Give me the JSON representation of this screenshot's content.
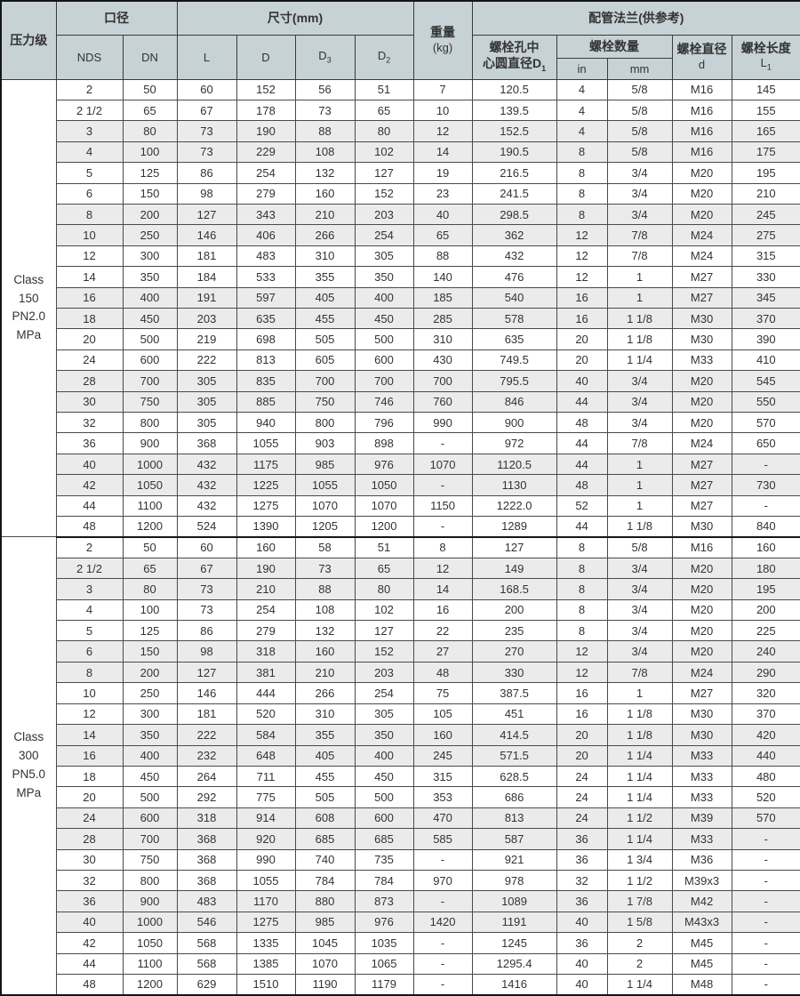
{
  "colors": {
    "header_bg": "#c7d2d6",
    "stripe_bg": "#ebebeb",
    "border_dark": "#151515",
    "border_mid": "#4a4a4a",
    "text": "#333333"
  },
  "header": {
    "pressure_class": "压力级",
    "bore": "口径",
    "nds": "NDS",
    "dn": "DN",
    "dimensions": "尺寸(mm)",
    "col_l": "L",
    "col_d": "D",
    "col_d3": {
      "main": "D",
      "sub": "3"
    },
    "col_d2": {
      "main": "D",
      "sub": "2"
    },
    "weight_line1": "重量",
    "weight_line2": "(kg)",
    "flange": "配管法兰(供参考)",
    "bolt_circle_line1": "螺栓孔中",
    "bolt_circle_line2": "心圆直径D",
    "bolt_circle_sub": "1",
    "bolt_qty": "螺栓数量",
    "bolt_qty_in": "in",
    "bolt_qty_mm": "mm",
    "bolt_dia_line1": "螺栓直径",
    "bolt_dia_line2": "d",
    "bolt_len_line1": "螺栓长度",
    "bolt_len_line2": "L",
    "bolt_len_sub": "1"
  },
  "sections": [
    {
      "label_lines": [
        "Class",
        "150",
        "PN2.0",
        "MPa"
      ],
      "rows": [
        {
          "shaded": false,
          "cells": [
            "2",
            "50",
            "60",
            "152",
            "56",
            "51",
            "7",
            "120.5",
            "4",
            "5/8",
            "M16",
            "145"
          ]
        },
        {
          "shaded": false,
          "cells": [
            "2 1/2",
            "65",
            "67",
            "178",
            "73",
            "65",
            "10",
            "139.5",
            "4",
            "5/8",
            "M16",
            "155"
          ]
        },
        {
          "shaded": true,
          "cells": [
            "3",
            "80",
            "73",
            "190",
            "88",
            "80",
            "12",
            "152.5",
            "4",
            "5/8",
            "M16",
            "165"
          ]
        },
        {
          "shaded": true,
          "cells": [
            "4",
            "100",
            "73",
            "229",
            "108",
            "102",
            "14",
            "190.5",
            "8",
            "5/8",
            "M16",
            "175"
          ]
        },
        {
          "shaded": false,
          "cells": [
            "5",
            "125",
            "86",
            "254",
            "132",
            "127",
            "19",
            "216.5",
            "8",
            "3/4",
            "M20",
            "195"
          ]
        },
        {
          "shaded": false,
          "cells": [
            "6",
            "150",
            "98",
            "279",
            "160",
            "152",
            "23",
            "241.5",
            "8",
            "3/4",
            "M20",
            "210"
          ]
        },
        {
          "shaded": true,
          "cells": [
            "8",
            "200",
            "127",
            "343",
            "210",
            "203",
            "40",
            "298.5",
            "8",
            "3/4",
            "M20",
            "245"
          ]
        },
        {
          "shaded": true,
          "cells": [
            "10",
            "250",
            "146",
            "406",
            "266",
            "254",
            "65",
            "362",
            "12",
            "7/8",
            "M24",
            "275"
          ]
        },
        {
          "shaded": false,
          "cells": [
            "12",
            "300",
            "181",
            "483",
            "310",
            "305",
            "88",
            "432",
            "12",
            "7/8",
            "M24",
            "315"
          ]
        },
        {
          "shaded": false,
          "cells": [
            "14",
            "350",
            "184",
            "533",
            "355",
            "350",
            "140",
            "476",
            "12",
            "1",
            "M27",
            "330"
          ]
        },
        {
          "shaded": true,
          "cells": [
            "16",
            "400",
            "191",
            "597",
            "405",
            "400",
            "185",
            "540",
            "16",
            "1",
            "M27",
            "345"
          ]
        },
        {
          "shaded": true,
          "cells": [
            "18",
            "450",
            "203",
            "635",
            "455",
            "450",
            "285",
            "578",
            "16",
            "1 1/8",
            "M30",
            "370"
          ]
        },
        {
          "shaded": false,
          "cells": [
            "20",
            "500",
            "219",
            "698",
            "505",
            "500",
            "310",
            "635",
            "20",
            "1 1/8",
            "M30",
            "390"
          ]
        },
        {
          "shaded": false,
          "cells": [
            "24",
            "600",
            "222",
            "813",
            "605",
            "600",
            "430",
            "749.5",
            "20",
            "1 1/4",
            "M33",
            "410"
          ]
        },
        {
          "shaded": true,
          "cells": [
            "28",
            "700",
            "305",
            "835",
            "700",
            "700",
            "700",
            "795.5",
            "40",
            "3/4",
            "M20",
            "545"
          ]
        },
        {
          "shaded": true,
          "cells": [
            "30",
            "750",
            "305",
            "885",
            "750",
            "746",
            "760",
            "846",
            "44",
            "3/4",
            "M20",
            "550"
          ]
        },
        {
          "shaded": false,
          "cells": [
            "32",
            "800",
            "305",
            "940",
            "800",
            "796",
            "990",
            "900",
            "48",
            "3/4",
            "M20",
            "570"
          ]
        },
        {
          "shaded": false,
          "cells": [
            "36",
            "900",
            "368",
            "1055",
            "903",
            "898",
            "-",
            "972",
            "44",
            "7/8",
            "M24",
            "650"
          ]
        },
        {
          "shaded": true,
          "cells": [
            "40",
            "1000",
            "432",
            "1175",
            "985",
            "976",
            "1070",
            "1120.5",
            "44",
            "1",
            "M27",
            "-"
          ]
        },
        {
          "shaded": true,
          "cells": [
            "42",
            "1050",
            "432",
            "1225",
            "1055",
            "1050",
            "-",
            "1130",
            "48",
            "1",
            "M27",
            "730"
          ]
        },
        {
          "shaded": false,
          "cells": [
            "44",
            "1100",
            "432",
            "1275",
            "1070",
            "1070",
            "1150",
            "1222.0",
            "52",
            "1",
            "M27",
            "-"
          ]
        },
        {
          "shaded": false,
          "cells": [
            "48",
            "1200",
            "524",
            "1390",
            "1205",
            "1200",
            "-",
            "1289",
            "44",
            "1 1/8",
            "M30",
            "840"
          ]
        }
      ]
    },
    {
      "label_lines": [
        "Class",
        "300",
        "PN5.0",
        "MPa"
      ],
      "rows": [
        {
          "shaded": false,
          "cells": [
            "2",
            "50",
            "60",
            "160",
            "58",
            "51",
            "8",
            "127",
            "8",
            "5/8",
            "M16",
            "160"
          ]
        },
        {
          "shaded": true,
          "cells": [
            "2 1/2",
            "65",
            "67",
            "190",
            "73",
            "65",
            "12",
            "149",
            "8",
            "3/4",
            "M20",
            "180"
          ]
        },
        {
          "shaded": true,
          "cells": [
            "3",
            "80",
            "73",
            "210",
            "88",
            "80",
            "14",
            "168.5",
            "8",
            "3/4",
            "M20",
            "195"
          ]
        },
        {
          "shaded": false,
          "cells": [
            "4",
            "100",
            "73",
            "254",
            "108",
            "102",
            "16",
            "200",
            "8",
            "3/4",
            "M20",
            "200"
          ]
        },
        {
          "shaded": false,
          "cells": [
            "5",
            "125",
            "86",
            "279",
            "132",
            "127",
            "22",
            "235",
            "8",
            "3/4",
            "M20",
            "225"
          ]
        },
        {
          "shaded": true,
          "cells": [
            "6",
            "150",
            "98",
            "318",
            "160",
            "152",
            "27",
            "270",
            "12",
            "3/4",
            "M20",
            "240"
          ]
        },
        {
          "shaded": true,
          "cells": [
            "8",
            "200",
            "127",
            "381",
            "210",
            "203",
            "48",
            "330",
            "12",
            "7/8",
            "M24",
            "290"
          ]
        },
        {
          "shaded": false,
          "cells": [
            "10",
            "250",
            "146",
            "444",
            "266",
            "254",
            "75",
            "387.5",
            "16",
            "1",
            "M27",
            "320"
          ]
        },
        {
          "shaded": false,
          "cells": [
            "12",
            "300",
            "181",
            "520",
            "310",
            "305",
            "105",
            "451",
            "16",
            "1 1/8",
            "M30",
            "370"
          ]
        },
        {
          "shaded": true,
          "cells": [
            "14",
            "350",
            "222",
            "584",
            "355",
            "350",
            "160",
            "414.5",
            "20",
            "1 1/8",
            "M30",
            "420"
          ]
        },
        {
          "shaded": true,
          "cells": [
            "16",
            "400",
            "232",
            "648",
            "405",
            "400",
            "245",
            "571.5",
            "20",
            "1 1/4",
            "M33",
            "440"
          ]
        },
        {
          "shaded": false,
          "cells": [
            "18",
            "450",
            "264",
            "711",
            "455",
            "450",
            "315",
            "628.5",
            "24",
            "1 1/4",
            "M33",
            "480"
          ]
        },
        {
          "shaded": false,
          "cells": [
            "20",
            "500",
            "292",
            "775",
            "505",
            "500",
            "353",
            "686",
            "24",
            "1 1/4",
            "M33",
            "520"
          ]
        },
        {
          "shaded": true,
          "cells": [
            "24",
            "600",
            "318",
            "914",
            "608",
            "600",
            "470",
            "813",
            "24",
            "1 1/2",
            "M39",
            "570"
          ]
        },
        {
          "shaded": true,
          "cells": [
            "28",
            "700",
            "368",
            "920",
            "685",
            "685",
            "585",
            "587",
            "36",
            "1 1/4",
            "M33",
            "-"
          ]
        },
        {
          "shaded": false,
          "cells": [
            "30",
            "750",
            "368",
            "990",
            "740",
            "735",
            "-",
            "921",
            "36",
            "1 3/4",
            "M36",
            "-"
          ]
        },
        {
          "shaded": false,
          "cells": [
            "32",
            "800",
            "368",
            "1055",
            "784",
            "784",
            "970",
            "978",
            "32",
            "1 1/2",
            "M39x3",
            "-"
          ]
        },
        {
          "shaded": true,
          "cells": [
            "36",
            "900",
            "483",
            "1170",
            "880",
            "873",
            "-",
            "1089",
            "36",
            "1 7/8",
            "M42",
            "-"
          ]
        },
        {
          "shaded": true,
          "cells": [
            "40",
            "1000",
            "546",
            "1275",
            "985",
            "976",
            "1420",
            "1191",
            "40",
            "1 5/8",
            "M43x3",
            "-"
          ]
        },
        {
          "shaded": false,
          "cells": [
            "42",
            "1050",
            "568",
            "1335",
            "1045",
            "1035",
            "-",
            "1245",
            "36",
            "2",
            "M45",
            "-"
          ]
        },
        {
          "shaded": false,
          "cells": [
            "44",
            "1100",
            "568",
            "1385",
            "1070",
            "1065",
            "-",
            "1295.4",
            "40",
            "2",
            "M45",
            "-"
          ]
        },
        {
          "shaded": false,
          "cells": [
            "48",
            "1200",
            "629",
            "1510",
            "1190",
            "1179",
            "-",
            "1416",
            "40",
            "1 1/4",
            "M48",
            "-"
          ]
        }
      ]
    }
  ]
}
